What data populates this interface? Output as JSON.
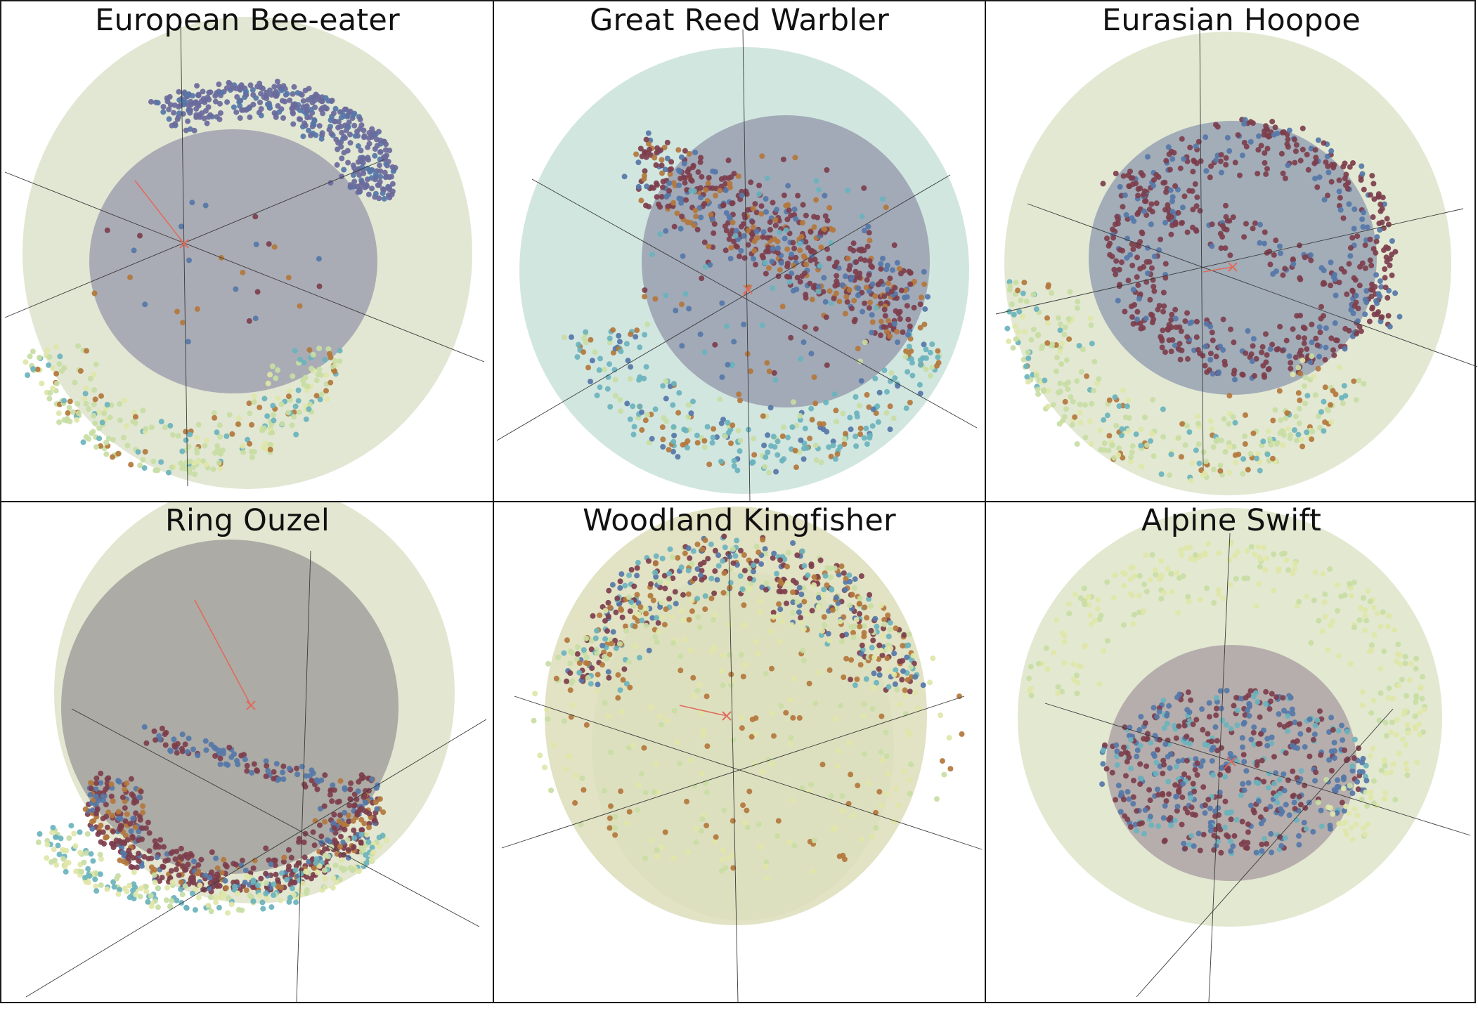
{
  "figure": {
    "panels": [
      {
        "title": "European Bee-eater",
        "outer": "#e2e7d3",
        "inner": "#a6a9b3",
        "cluster": "purple",
        "dist": "top-right"
      },
      {
        "title": "Great Reed Warbler",
        "outer": "#d2e6e0",
        "inner": "#9fa6b4",
        "cluster": "maroon",
        "dist": "band"
      },
      {
        "title": "Eurasian Hoopoe",
        "outer": "#e3e8d3",
        "inner": "#9eaab6",
        "cluster": "maroon",
        "dist": "ring"
      },
      {
        "title": "Ring Ouzel",
        "outer": "#e3e6d0",
        "inner": "#a9a8a3",
        "cluster": "maroon",
        "dist": "bowl"
      },
      {
        "title": "Woodland Kingfisher",
        "outer": "#e2e2c4",
        "inner": "#dcdfbf",
        "cluster": "mixed",
        "dist": "dome"
      },
      {
        "title": "Alpine Swift",
        "outer": "#e3e8d1",
        "inner": "#b3abaa",
        "cluster": "blue-maroon",
        "dist": "core"
      }
    ],
    "palette": {
      "purple": "#6a6a9c",
      "maroon": "#7d3e4c",
      "blue": "#5577a8",
      "teal": "#6ab3bd",
      "light_green": "#c8dda4",
      "pale_yellow": "#dfe6a8",
      "ochre": "#b3773c",
      "marker": "#e06b5b"
    }
  }
}
